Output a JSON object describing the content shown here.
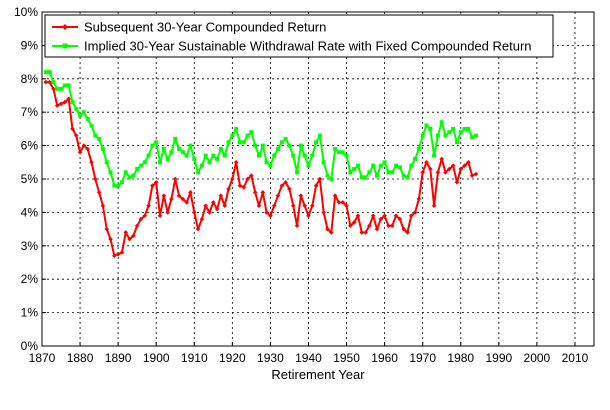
{
  "chart_data": {
    "type": "line",
    "title": "",
    "xlabel": "Retirement Year",
    "ylabel": "",
    "xlim": [
      1870,
      2015
    ],
    "ylim": [
      0,
      10
    ],
    "x_ticks": [
      "1870",
      "1880",
      "1890",
      "1900",
      "1910",
      "1920",
      "1930",
      "1940",
      "1950",
      "1960",
      "1970",
      "1980",
      "1990",
      "2000",
      "2010"
    ],
    "y_ticks": [
      "0%",
      "1%",
      "2%",
      "3%",
      "4%",
      "5%",
      "6%",
      "7%",
      "8%",
      "9%",
      "10%"
    ],
    "grid": true,
    "legend_position": "top-left",
    "series": [
      {
        "name": "Subsequent 30-Year Compounded Return",
        "color": "#ff0000",
        "x": [
          1871,
          1872,
          1873,
          1874,
          1875,
          1876,
          1877,
          1878,
          1879,
          1880,
          1881,
          1882,
          1883,
          1884,
          1885,
          1886,
          1887,
          1888,
          1889,
          1890,
          1891,
          1892,
          1893,
          1894,
          1895,
          1896,
          1897,
          1898,
          1899,
          1900,
          1901,
          1902,
          1903,
          1904,
          1905,
          1906,
          1907,
          1908,
          1909,
          1910,
          1911,
          1912,
          1913,
          1914,
          1915,
          1916,
          1917,
          1918,
          1919,
          1920,
          1921,
          1922,
          1923,
          1924,
          1925,
          1926,
          1927,
          1928,
          1929,
          1930,
          1931,
          1932,
          1933,
          1934,
          1935,
          1936,
          1937,
          1938,
          1939,
          1940,
          1941,
          1942,
          1943,
          1944,
          1945,
          1946,
          1947,
          1948,
          1949,
          1950,
          1951,
          1952,
          1953,
          1954,
          1955,
          1956,
          1957,
          1958,
          1959,
          1960,
          1961,
          1962,
          1963,
          1964,
          1965,
          1966,
          1967,
          1968,
          1969,
          1970,
          1971,
          1972,
          1973,
          1974,
          1975,
          1976,
          1977,
          1978,
          1979,
          1980,
          1981,
          1982,
          1983,
          1984
        ],
        "values": [
          7.9,
          7.9,
          7.7,
          7.2,
          7.25,
          7.3,
          7.4,
          6.5,
          6.3,
          5.8,
          6.0,
          5.9,
          5.5,
          5.0,
          4.6,
          4.2,
          3.5,
          3.2,
          2.7,
          2.75,
          2.8,
          3.4,
          3.2,
          3.3,
          3.6,
          3.8,
          3.9,
          4.2,
          4.8,
          4.9,
          3.9,
          4.5,
          4.0,
          4.4,
          5.0,
          4.5,
          4.4,
          4.3,
          4.6,
          4.0,
          3.5,
          3.8,
          4.2,
          4.0,
          4.3,
          4.1,
          4.5,
          4.2,
          4.7,
          5.0,
          5.5,
          4.8,
          4.75,
          5.0,
          5.1,
          4.6,
          4.2,
          4.6,
          4.0,
          3.9,
          4.2,
          4.5,
          4.8,
          4.9,
          4.7,
          4.2,
          3.6,
          4.5,
          4.2,
          3.9,
          4.2,
          4.8,
          5.0,
          4.0,
          3.5,
          3.4,
          4.5,
          4.3,
          4.3,
          4.2,
          3.6,
          3.7,
          3.9,
          3.4,
          3.4,
          3.6,
          3.9,
          3.5,
          3.8,
          3.9,
          3.6,
          3.6,
          3.9,
          3.8,
          3.5,
          3.4,
          3.9,
          4.0,
          4.4,
          5.2,
          5.5,
          5.3,
          4.2,
          5.2,
          5.6,
          5.2,
          5.3,
          5.4,
          4.9,
          5.3,
          5.4,
          5.5,
          5.1,
          5.15
        ]
      },
      {
        "name": "Implied 30-Year Sustainable Withdrawal Rate with Fixed Compounded Return",
        "color": "#00ff00",
        "x": [
          1871,
          1872,
          1873,
          1874,
          1875,
          1876,
          1877,
          1878,
          1879,
          1880,
          1881,
          1882,
          1883,
          1884,
          1885,
          1886,
          1887,
          1888,
          1889,
          1890,
          1891,
          1892,
          1893,
          1894,
          1895,
          1896,
          1897,
          1898,
          1899,
          1900,
          1901,
          1902,
          1903,
          1904,
          1905,
          1906,
          1907,
          1908,
          1909,
          1910,
          1911,
          1912,
          1913,
          1914,
          1915,
          1916,
          1917,
          1918,
          1919,
          1920,
          1921,
          1922,
          1923,
          1924,
          1925,
          1926,
          1927,
          1928,
          1929,
          1930,
          1931,
          1932,
          1933,
          1934,
          1935,
          1936,
          1937,
          1938,
          1939,
          1940,
          1941,
          1942,
          1943,
          1944,
          1945,
          1946,
          1947,
          1948,
          1949,
          1950,
          1951,
          1952,
          1953,
          1954,
          1955,
          1956,
          1957,
          1958,
          1959,
          1960,
          1961,
          1962,
          1963,
          1964,
          1965,
          1966,
          1967,
          1968,
          1969,
          1970,
          1971,
          1972,
          1973,
          1974,
          1975,
          1976,
          1977,
          1978,
          1979,
          1980,
          1981,
          1982,
          1983,
          1984
        ],
        "values": [
          8.2,
          8.2,
          7.9,
          7.7,
          7.7,
          7.8,
          7.8,
          7.3,
          7.1,
          6.9,
          7.0,
          6.8,
          6.6,
          6.3,
          6.2,
          5.9,
          5.5,
          5.2,
          4.8,
          4.8,
          4.9,
          5.2,
          5.05,
          5.1,
          5.3,
          5.4,
          5.5,
          5.7,
          6.0,
          6.1,
          5.5,
          5.9,
          5.6,
          5.8,
          6.2,
          5.9,
          5.8,
          5.7,
          6.0,
          5.6,
          5.2,
          5.4,
          5.7,
          5.5,
          5.7,
          5.6,
          5.9,
          5.7,
          6.1,
          6.3,
          6.5,
          6.1,
          6.1,
          6.3,
          6.4,
          6.0,
          5.7,
          6.0,
          5.5,
          5.4,
          5.7,
          5.9,
          6.1,
          6.2,
          6.0,
          5.7,
          5.2,
          6.0,
          5.7,
          5.4,
          5.7,
          6.1,
          6.3,
          5.5,
          5.1,
          5.0,
          5.9,
          5.8,
          5.8,
          5.7,
          5.2,
          5.3,
          5.4,
          5.05,
          5.05,
          5.2,
          5.4,
          5.1,
          5.4,
          5.5,
          5.2,
          5.2,
          5.4,
          5.35,
          5.1,
          5.05,
          5.4,
          5.6,
          5.9,
          6.3,
          6.6,
          6.5,
          5.7,
          6.3,
          6.7,
          6.3,
          6.4,
          6.5,
          6.1,
          6.4,
          6.5,
          6.5,
          6.25,
          6.3
        ]
      }
    ]
  }
}
